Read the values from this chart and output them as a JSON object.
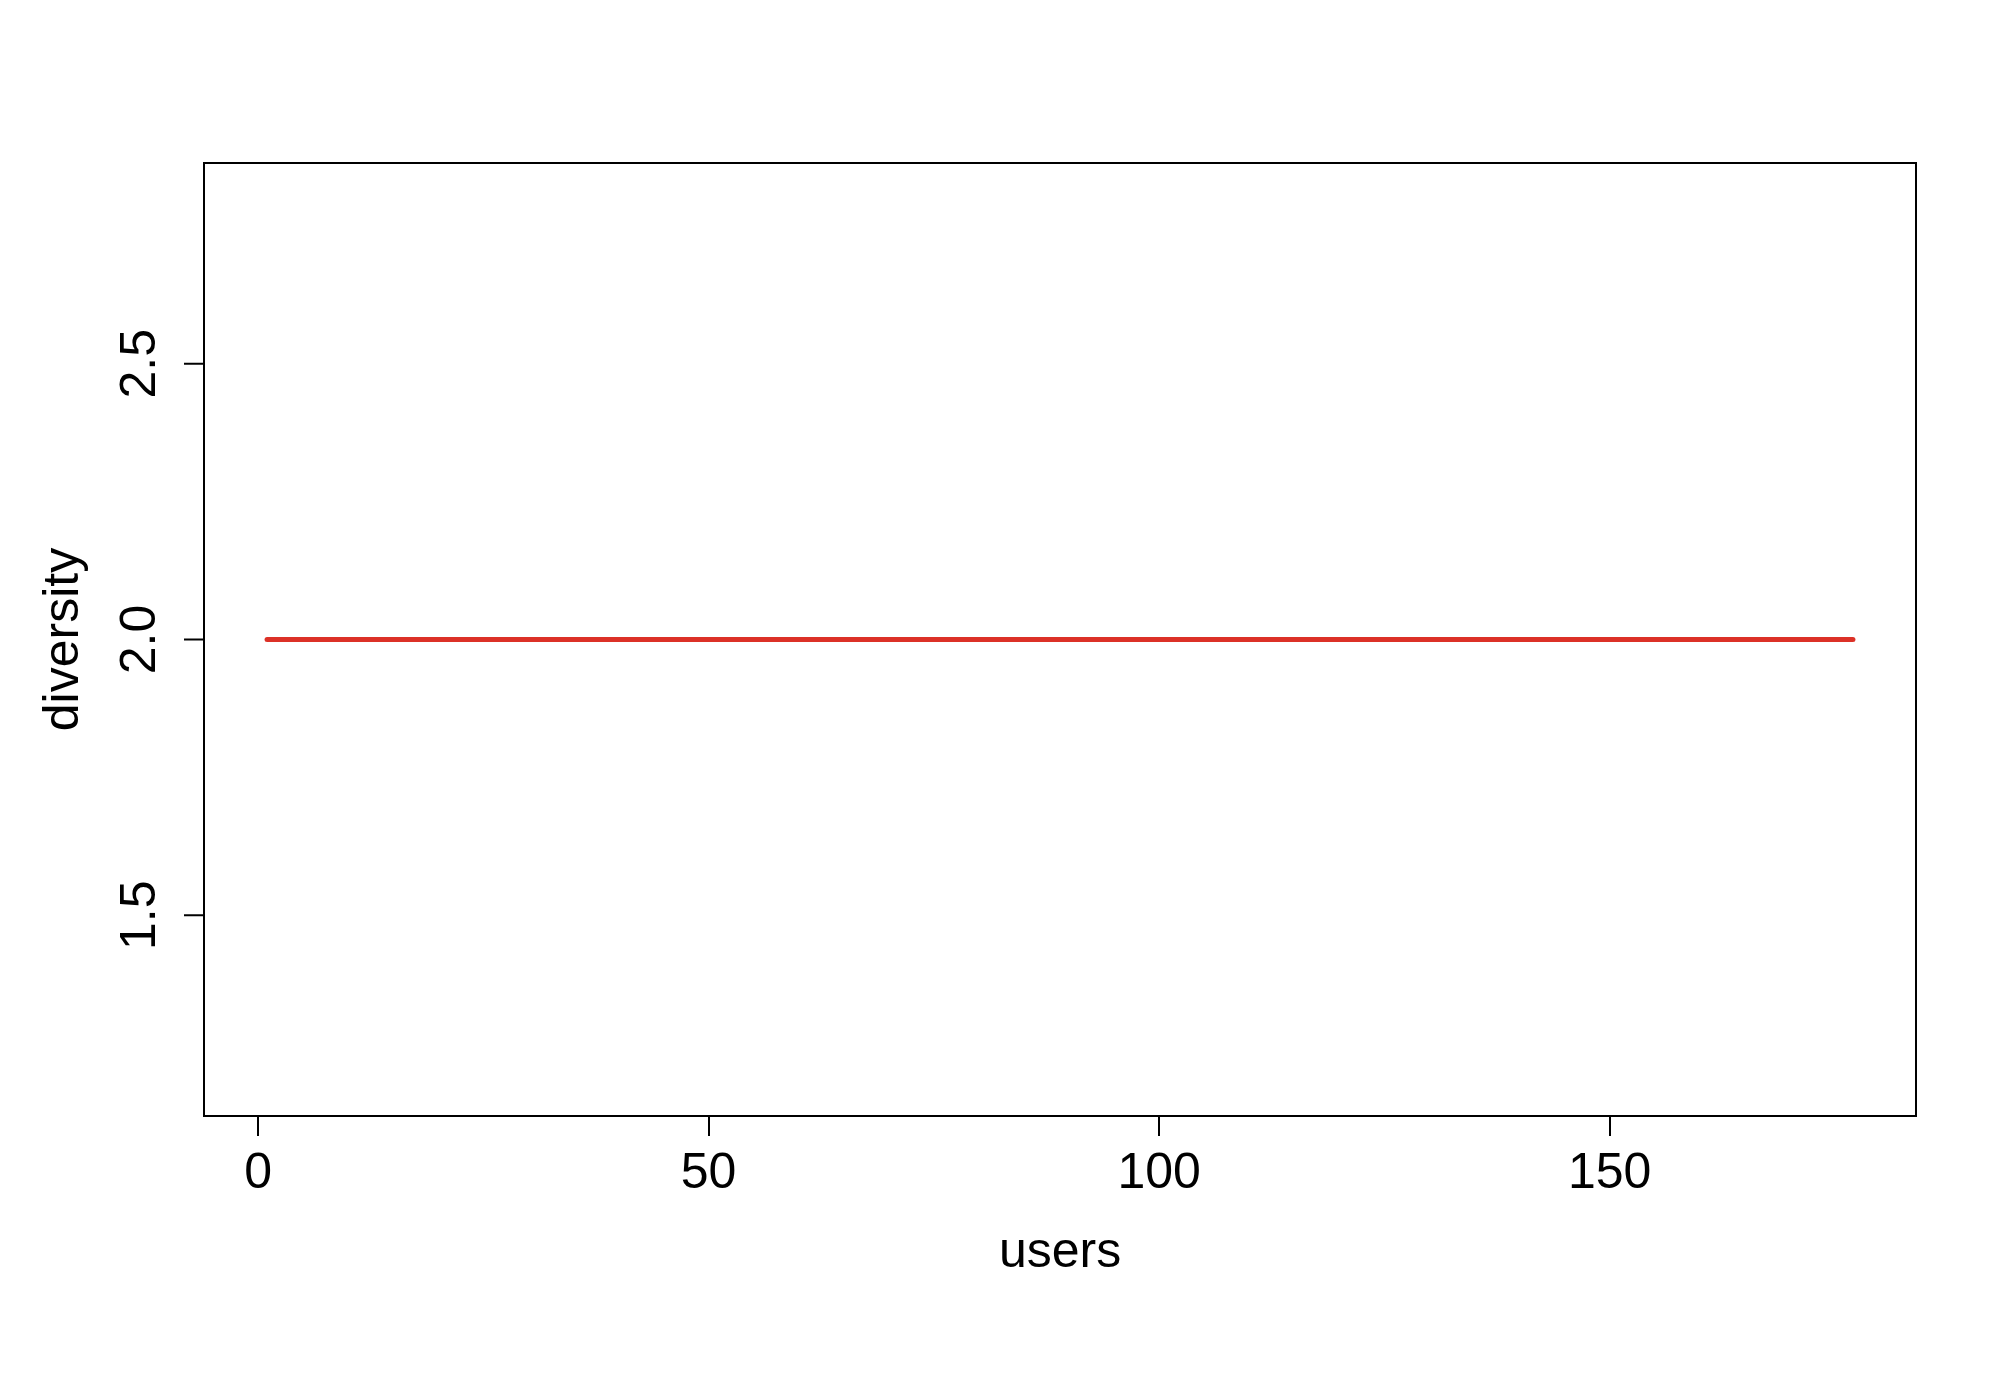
{
  "chart_data": {
    "type": "line",
    "xlabel": "users",
    "ylabel": "diversity",
    "x": [
      1,
      177
    ],
    "series": [
      {
        "color": "#dc3127",
        "values": [
          2,
          2
        ]
      }
    ],
    "xlim": [
      -6,
      184
    ],
    "xticks": [
      0,
      50,
      100,
      150
    ],
    "ylim": [
      1.136,
      2.864
    ],
    "yticks": [
      1.5,
      {
        "value": 2,
        "label": "2.0"
      },
      2.5
    ],
    "line_style": "solid"
  }
}
